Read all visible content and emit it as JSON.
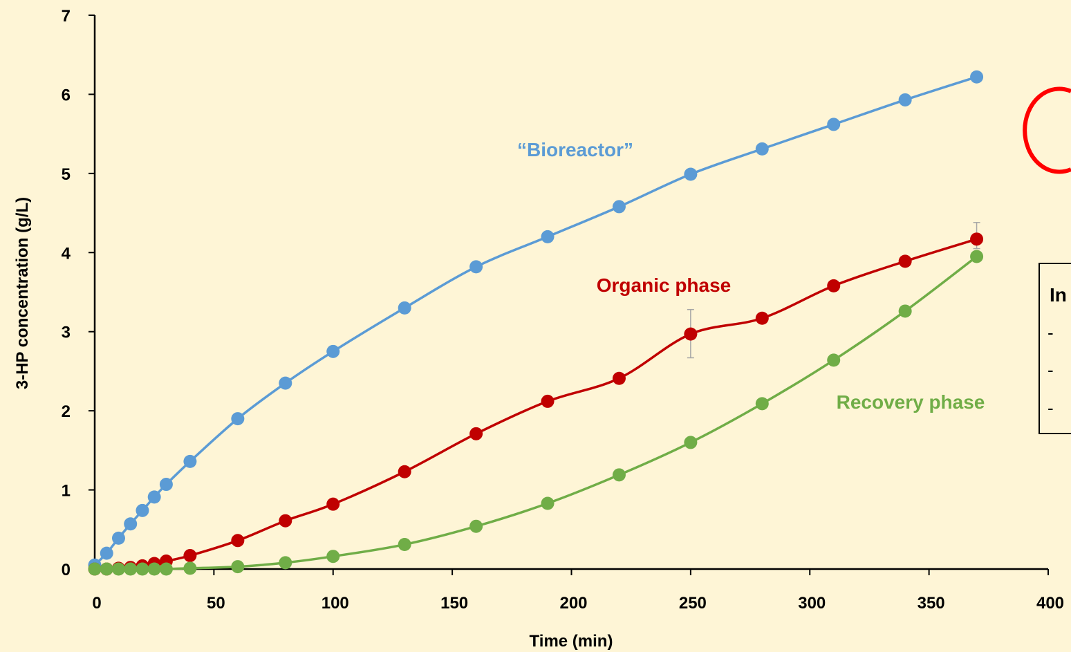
{
  "chart_data": {
    "type": "scatter",
    "xlabel": "Time (min)",
    "ylabel": "3-HP concentration (g/L)",
    "xlim": [
      0,
      400
    ],
    "ylim": [
      0,
      7
    ],
    "x_ticks": [
      "0",
      "50",
      "100",
      "150",
      "200",
      "250",
      "300",
      "350",
      "400"
    ],
    "y_ticks": [
      "0",
      "1",
      "2",
      "3",
      "4",
      "5",
      "6",
      "7"
    ],
    "grid": false,
    "series": [
      {
        "name": "“Bioreactor”",
        "color": "#5b9bd5",
        "x": [
          0,
          5,
          10,
          15,
          20,
          25,
          30,
          40,
          60,
          80,
          100,
          130,
          160,
          190,
          220,
          250,
          280,
          310,
          340,
          370
        ],
        "y": [
          0.05,
          0.2,
          0.39,
          0.57,
          0.74,
          0.91,
          1.07,
          1.36,
          1.9,
          2.35,
          2.75,
          3.3,
          3.82,
          4.2,
          4.58,
          4.99,
          5.31,
          5.62,
          5.93,
          6.22
        ]
      },
      {
        "name": "Organic phase",
        "color": "#c00000",
        "x": [
          0,
          5,
          10,
          15,
          20,
          25,
          30,
          40,
          60,
          80,
          100,
          130,
          160,
          190,
          220,
          250,
          280,
          310,
          340,
          370
        ],
        "y": [
          0,
          0,
          0.01,
          0.02,
          0.04,
          0.07,
          0.1,
          0.17,
          0.36,
          0.61,
          0.82,
          1.23,
          1.71,
          2.12,
          2.41,
          2.97,
          3.17,
          3.58,
          3.89,
          4.17
        ],
        "error_bars": [
          {
            "x": 250,
            "low": 2.67,
            "high": 3.28
          },
          {
            "x": 370,
            "low": 4.05,
            "high": 4.38
          }
        ]
      },
      {
        "name": "Recovery phase",
        "color": "#70ad47",
        "x": [
          0,
          5,
          10,
          15,
          20,
          25,
          30,
          40,
          60,
          80,
          100,
          130,
          160,
          190,
          220,
          250,
          280,
          310,
          340,
          370
        ],
        "y": [
          0,
          0,
          0,
          0,
          0,
          0,
          0,
          0.01,
          0.03,
          0.08,
          0.16,
          0.31,
          0.54,
          0.83,
          1.19,
          1.6,
          2.09,
          2.64,
          3.26,
          3.95
        ]
      }
    ],
    "annotations": {
      "info_box_title_visible": "In",
      "info_box_dashes": [
        "-",
        "-",
        "-"
      ]
    }
  }
}
